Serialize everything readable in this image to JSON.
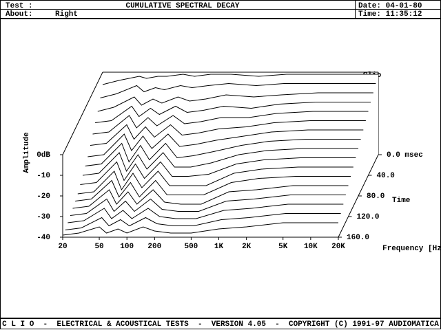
{
  "header": {
    "test_label": "Test :",
    "title": "CUMULATIVE SPECTRAL DECAY",
    "date": "Date: 04-01-80",
    "about_label": "About:",
    "about": "Right",
    "time": "Time: 11:35:12"
  },
  "chart_data": {
    "type": "waterfall",
    "brand": "Clio",
    "y_label": "Amplitude",
    "x_label": "Frequency [Hz]",
    "z_label": "Time",
    "color": "#000000",
    "xlim": [
      20,
      20000
    ],
    "log_x": true,
    "xticks": [
      20,
      50,
      100,
      200,
      500,
      {
        "value": 1000,
        "label": "1K"
      },
      {
        "value": 2000,
        "label": "2K"
      },
      {
        "value": 5000,
        "label": "5K"
      },
      {
        "value": 10000,
        "label": "10K"
      },
      {
        "value": 20000,
        "label": "20K"
      }
    ],
    "ylim": [
      -40,
      0
    ],
    "yticks": [
      {
        "value": 0,
        "label": "0dB"
      },
      -10,
      -20,
      -30,
      -40
    ],
    "zlim": [
      0,
      160
    ],
    "zticks": [
      {
        "value": 0,
        "label": "0.0 msec"
      },
      {
        "value": 40,
        "label": "40.0"
      },
      {
        "value": 80,
        "label": "80.0"
      },
      {
        "value": 120,
        "label": "120.0"
      },
      {
        "value": 160,
        "label": "160.0"
      }
    ],
    "x": [
      20,
      30,
      50,
      60,
      80,
      100,
      150,
      200,
      300,
      500,
      1000,
      2000,
      5000,
      20000
    ],
    "series": [
      {
        "time": 0,
        "values": [
          -6,
          -4,
          -2,
          -3,
          -2,
          -2,
          -1,
          -2,
          -1,
          -1,
          -2,
          -1,
          -1,
          -1
        ]
      },
      {
        "time": 10,
        "values": [
          -10,
          -8,
          -4,
          -7,
          -5,
          -6,
          -4,
          -5,
          -4,
          -3,
          -4,
          -3,
          -3,
          -3
        ]
      },
      {
        "time": 20,
        "values": [
          -14,
          -12,
          -7,
          -11,
          -8,
          -10,
          -7,
          -9,
          -8,
          -6,
          -7,
          -6,
          -5,
          -5
        ]
      },
      {
        "time": 30,
        "values": [
          -17,
          -16,
          -9,
          -14,
          -10,
          -13,
          -9,
          -12,
          -11,
          -9,
          -10,
          -8,
          -7,
          -7
        ]
      },
      {
        "time": 40,
        "values": [
          -20,
          -19,
          -11,
          -17,
          -12,
          -16,
          -11,
          -15,
          -14,
          -12,
          -12,
          -10,
          -9,
          -9
        ]
      },
      {
        "time": 50,
        "values": [
          -23,
          -22,
          -13,
          -20,
          -14,
          -19,
          -13,
          -18,
          -17,
          -15,
          -14,
          -12,
          -11,
          -11
        ]
      },
      {
        "time": 60,
        "values": [
          -26,
          -25,
          -15,
          -23,
          -16,
          -22,
          -15,
          -21,
          -20,
          -18,
          -16,
          -14,
          -13,
          -13
        ]
      },
      {
        "time": 70,
        "values": [
          -28,
          -27,
          -17,
          -26,
          -18,
          -25,
          -17,
          -24,
          -23,
          -21,
          -18,
          -16,
          -15,
          -15
        ]
      },
      {
        "time": 80,
        "values": [
          -30,
          -29,
          -19,
          -28,
          -20,
          -27,
          -19,
          -26,
          -26,
          -24,
          -20,
          -18,
          -17,
          -17
        ]
      },
      {
        "time": 90,
        "values": [
          -32,
          -31,
          -21,
          -30,
          -22,
          -29,
          -21,
          -28,
          -28,
          -27,
          -22,
          -20,
          -19,
          -19
        ]
      },
      {
        "time": 100,
        "values": [
          -34,
          -33,
          -23,
          -32,
          -24,
          -31,
          -23,
          -30,
          -30,
          -30,
          -24,
          -22,
          -21,
          -21
        ]
      },
      {
        "time": 110,
        "values": [
          -35,
          -34,
          -25,
          -33,
          -26,
          -33,
          -25,
          -32,
          -32,
          -32,
          -26,
          -24,
          -23,
          -23
        ]
      },
      {
        "time": 120,
        "values": [
          -36,
          -35,
          -27,
          -34,
          -28,
          -34,
          -27,
          -33,
          -34,
          -34,
          -28,
          -27,
          -25,
          -25
        ]
      },
      {
        "time": 130,
        "values": [
          -37,
          -36,
          -29,
          -35,
          -30,
          -35,
          -29,
          -34,
          -35,
          -35,
          -30,
          -29,
          -27,
          -27
        ]
      },
      {
        "time": 140,
        "values": [
          -38,
          -37,
          -31,
          -36,
          -32,
          -36,
          -31,
          -35,
          -36,
          -36,
          -32,
          -31,
          -29,
          -29
        ]
      },
      {
        "time": 150,
        "values": [
          -39,
          -38,
          -33,
          -37,
          -34,
          -37,
          -33,
          -36,
          -37,
          -37,
          -34,
          -33,
          -31,
          -31
        ]
      },
      {
        "time": 160,
        "values": [
          -39,
          -38,
          -35,
          -38,
          -36,
          -38,
          -35,
          -37,
          -38,
          -38,
          -36,
          -35,
          -33,
          -33
        ]
      }
    ]
  },
  "footer": {
    "text": "C L I O  -  ELECTRICAL & ACOUSTICAL TESTS  -  VERSION 4.05  -  COPYRIGHT (C) 1991-97 AUDIOMATICA"
  }
}
